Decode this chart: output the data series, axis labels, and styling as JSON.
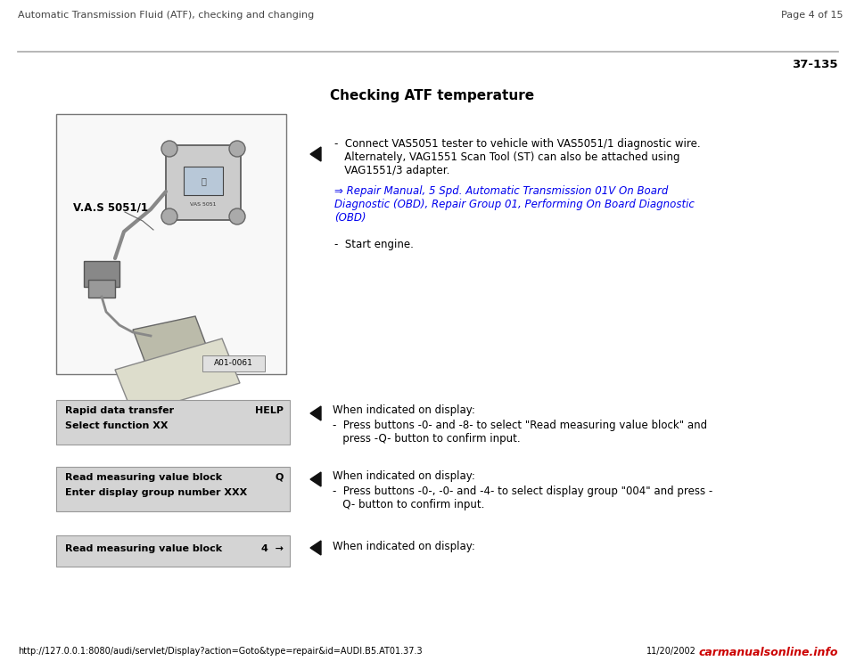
{
  "bg_color": "#ffffff",
  "header_left": "Automatic Transmission Fluid (ATF), checking and changing",
  "header_right": "Page 4 of 15",
  "section_number": "37-135",
  "section_title": "Checking ATF temperature",
  "step1_line1": "-  Connect VAS5051 tester to vehicle with VAS5051/1 diagnostic wire.",
  "step1_line2": "   Alternately, VAG1551 Scan Tool (ST) can also be attached using",
  "step1_line3": "   VAG1551/3 adapter.",
  "step1_link1": "⇒ Repair Manual, 5 Spd. Automatic Transmission 01V On Board",
  "step1_link2": "Diagnostic (OBD), Repair Group 01, Performing On Board Diagnostic",
  "step1_link3": "(OBD)",
  "step1_engine": "-  Start engine.",
  "disp1_l1": "Rapid data transfer",
  "disp1_r1": "HELP",
  "disp1_l2": "Select function XX",
  "step2_hdr": "When indicated on display:",
  "step2_b1": "-  Press buttons -0- and -8- to select \"Read measuring value block\" and",
  "step2_b2": "   press -Q- button to confirm input.",
  "disp2_l1": "Read measuring value block",
  "disp2_r1": "Q",
  "disp2_l2": "Enter display group number XXX",
  "step3_hdr": "When indicated on display:",
  "step3_b1": "-  Press buttons -0-, -0- and -4- to select display group \"004\" and press -",
  "step3_b2": "   Q- button to confirm input.",
  "disp3_l1": "Read measuring value block",
  "disp3_r1": "4  →",
  "step4_hdr": "When indicated on display:",
  "footer_url": "http://127.0.0.1:8080/audi/servlet/Display?action=Goto&type=repair&id=AUDI.B5.AT01.37.3",
  "footer_date": "11/20/2002",
  "footer_logo": "carmanualsonline.info",
  "img_label": "V.A.S 5051/1",
  "img_code": "A01-0061",
  "link_color": "#0000ee",
  "text_color": "#000000",
  "gray_color": "#555555",
  "display_bg": "#d4d4d4",
  "display_border": "#999999",
  "header_sep_color": "#aaaaaa",
  "footer_logo_color": "#cc0000"
}
